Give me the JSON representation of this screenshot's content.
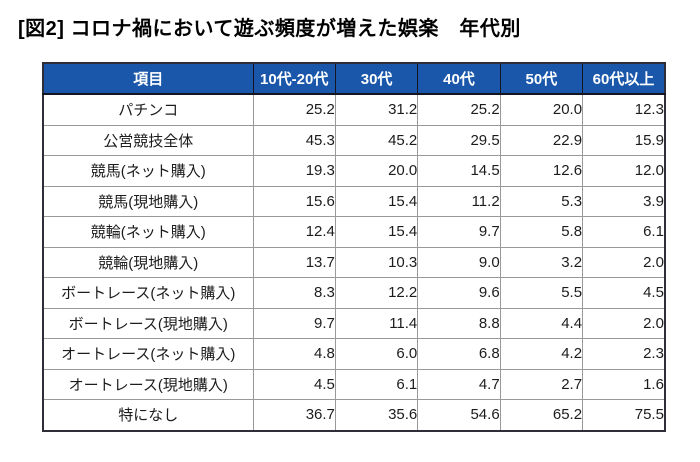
{
  "title": "[図2] コロナ禍において遊ぶ頻度が増えた娯楽　年代別",
  "colors": {
    "header_bg": "#1a57aa",
    "header_text": "#ffffff",
    "highlight_bg": "#e8f1f9",
    "highlight_stripe": "#cfe2f2",
    "outer_border": "#2e2e38",
    "inner_border": "#999999"
  },
  "chart_data": {
    "type": "table",
    "title": "[図2] コロナ禍において遊ぶ頻度が増えた娯楽　年代別",
    "columns": [
      "項目",
      "10代-20代",
      "30代",
      "40代",
      "50代",
      "60代以上"
    ],
    "rows": [
      {
        "label": "パチンコ",
        "values": [
          "25.2",
          "31.2",
          "25.2",
          "20.0",
          "12.3"
        ]
      },
      {
        "label": "公営競技全体",
        "values": [
          "45.3",
          "45.2",
          "29.5",
          "22.9",
          "15.9"
        ],
        "highlight": [
          0,
          1
        ]
      },
      {
        "label": "競馬(ネット購入)",
        "values": [
          "19.3",
          "20.0",
          "14.5",
          "12.6",
          "12.0"
        ]
      },
      {
        "label": "競馬(現地購入)",
        "values": [
          "15.6",
          "15.4",
          "11.2",
          "5.3",
          "3.9"
        ]
      },
      {
        "label": "競輪(ネット購入)",
        "values": [
          "12.4",
          "15.4",
          "9.7",
          "5.8",
          "6.1"
        ]
      },
      {
        "label": "競輪(現地購入)",
        "values": [
          "13.7",
          "10.3",
          "9.0",
          "3.2",
          "2.0"
        ]
      },
      {
        "label": "ボートレース(ネット購入)",
        "values": [
          "8.3",
          "12.2",
          "9.6",
          "5.5",
          "4.5"
        ]
      },
      {
        "label": "ボートレース(現地購入)",
        "values": [
          "9.7",
          "11.4",
          "8.8",
          "4.4",
          "2.0"
        ]
      },
      {
        "label": "オートレース(ネット購入)",
        "values": [
          "4.8",
          "6.0",
          "6.8",
          "4.2",
          "2.3"
        ]
      },
      {
        "label": "オートレース(現地購入)",
        "values": [
          "4.5",
          "6.1",
          "4.7",
          "2.7",
          "1.6"
        ]
      },
      {
        "label": "特になし",
        "values": [
          "36.7",
          "35.6",
          "54.6",
          "65.2",
          "75.5"
        ]
      }
    ]
  }
}
